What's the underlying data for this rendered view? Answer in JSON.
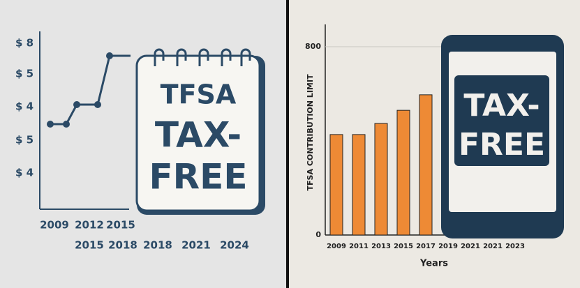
{
  "left": {
    "y_labels": [
      "$ 8",
      "$ 5",
      "$ 4",
      "$ 5",
      "$ 4"
    ],
    "x_labels_top": [
      "2009",
      "2012",
      "2015"
    ],
    "x_labels_bottom": [
      "2015",
      "2018",
      "2018",
      "2021",
      "2024"
    ],
    "notepad": {
      "title": "TFSA",
      "lines": [
        "TAX-",
        "FREE"
      ]
    }
  },
  "chart_data": {
    "type": "bar",
    "ylabel": "TFSA CONTRIBUTION LIMIT",
    "xlabel": "Years",
    "categories": [
      "2009",
      "2011",
      "2013",
      "2015",
      "2017",
      "2019",
      "2021",
      "2021",
      "2023"
    ],
    "values": [
      427,
      427,
      474,
      530,
      596,
      null,
      null,
      null,
      null
    ],
    "color": "#ee8a35",
    "ylim": [
      0,
      895
    ],
    "yticks": [
      0,
      800
    ],
    "grid": true,
    "phone": {
      "lines": [
        "TAX-",
        "FREE"
      ]
    }
  }
}
